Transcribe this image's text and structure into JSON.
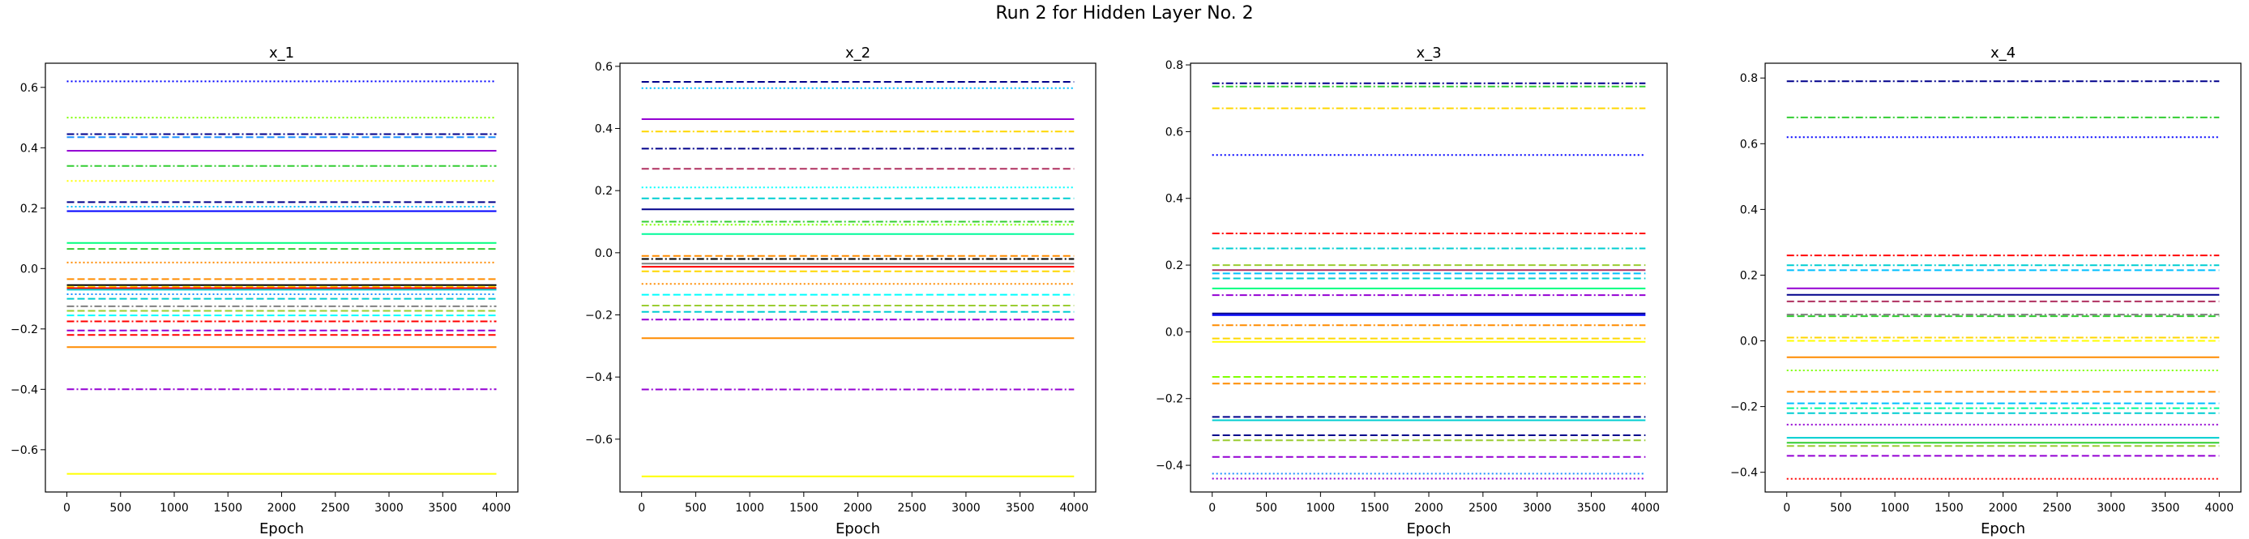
{
  "figure": {
    "title": "Run 2 for Hidden Layer No. 2"
  },
  "chart_data": [
    {
      "type": "line",
      "title": "x_1",
      "xlabel": "Epoch",
      "ylabel": "",
      "xlim": [
        -200,
        4200
      ],
      "ylim": [
        -0.74,
        0.68
      ],
      "xticks": [
        0,
        500,
        1000,
        1500,
        2000,
        2500,
        3000,
        3500,
        4000
      ],
      "yticks": [
        -0.6,
        -0.4,
        -0.2,
        0.0,
        0.2,
        0.4,
        0.6
      ],
      "ytick_labels": [
        "−0.6",
        "−0.4",
        "−0.2",
        "0.0",
        "0.2",
        "0.4",
        "0.6"
      ],
      "x_range": [
        0,
        4000
      ],
      "grid": false,
      "series": [
        {
          "value": 0.62,
          "color": "#0000ff",
          "style": "dotted"
        },
        {
          "value": 0.5,
          "color": "#7fff00",
          "style": "dotted"
        },
        {
          "value": 0.445,
          "color": "#00008b",
          "style": "dashdot"
        },
        {
          "value": 0.435,
          "color": "#1e90ff",
          "style": "dashed"
        },
        {
          "value": 0.39,
          "color": "#9400d3",
          "style": "solid"
        },
        {
          "value": 0.34,
          "color": "#32cd32",
          "style": "dashdot"
        },
        {
          "value": 0.29,
          "color": "#ffff00",
          "style": "dotted"
        },
        {
          "value": 0.22,
          "color": "#00008b",
          "style": "dashed"
        },
        {
          "value": 0.205,
          "color": "#00bfff",
          "style": "dotted"
        },
        {
          "value": 0.19,
          "color": "#0000ff",
          "style": "solid"
        },
        {
          "value": 0.085,
          "color": "#00ff7f",
          "style": "solid"
        },
        {
          "value": 0.065,
          "color": "#32cd32",
          "style": "dashed"
        },
        {
          "value": 0.02,
          "color": "#ff8c00",
          "style": "dotted"
        },
        {
          "value": -0.035,
          "color": "#ff8c00",
          "style": "dashed"
        },
        {
          "value": -0.055,
          "color": "#000000",
          "style": "solid"
        },
        {
          "value": -0.06,
          "color": "#ffd700",
          "style": "dashed"
        },
        {
          "value": -0.065,
          "color": "#ff0000",
          "style": "solid"
        },
        {
          "value": -0.07,
          "color": "#00ced1",
          "style": "solid"
        },
        {
          "value": -0.085,
          "color": "#1e90ff",
          "style": "dotted"
        },
        {
          "value": -0.1,
          "color": "#00ced1",
          "style": "dashed"
        },
        {
          "value": -0.125,
          "color": "#808080",
          "style": "dashdot"
        },
        {
          "value": -0.14,
          "color": "#9acd32",
          "style": "dashed"
        },
        {
          "value": -0.155,
          "color": "#00ffff",
          "style": "dashed"
        },
        {
          "value": -0.175,
          "color": "#ff0000",
          "style": "dashdot"
        },
        {
          "value": -0.205,
          "color": "#9400d3",
          "style": "dashed"
        },
        {
          "value": -0.22,
          "color": "#ff0000",
          "style": "dashed"
        },
        {
          "value": -0.26,
          "color": "#ff8c00",
          "style": "solid"
        },
        {
          "value": -0.4,
          "color": "#9400d3",
          "style": "dashdot"
        },
        {
          "value": -0.68,
          "color": "#ffff00",
          "style": "solid"
        }
      ]
    },
    {
      "type": "line",
      "title": "x_2",
      "xlabel": "Epoch",
      "ylabel": "",
      "xlim": [
        -200,
        4200
      ],
      "ylim": [
        -0.77,
        0.61
      ],
      "xticks": [
        0,
        500,
        1000,
        1500,
        2000,
        2500,
        3000,
        3500,
        4000
      ],
      "yticks": [
        -0.6,
        -0.4,
        -0.2,
        0.0,
        0.2,
        0.4,
        0.6
      ],
      "ytick_labels": [
        "−0.6",
        "−0.4",
        "−0.2",
        "0.0",
        "0.2",
        "0.4",
        "0.6"
      ],
      "x_range": [
        0,
        4000
      ],
      "grid": false,
      "series": [
        {
          "value": 0.55,
          "color": "#00008b",
          "style": "dashed"
        },
        {
          "value": 0.53,
          "color": "#00bfff",
          "style": "dotted"
        },
        {
          "value": 0.43,
          "color": "#9400d3",
          "style": "solid"
        },
        {
          "value": 0.39,
          "color": "#ffd700",
          "style": "dashdot"
        },
        {
          "value": 0.335,
          "color": "#00008b",
          "style": "dashdot"
        },
        {
          "value": 0.27,
          "color": "#b03060",
          "style": "dashed"
        },
        {
          "value": 0.21,
          "color": "#00ffff",
          "style": "dotted"
        },
        {
          "value": 0.175,
          "color": "#00ced1",
          "style": "dashed"
        },
        {
          "value": 0.14,
          "color": "#00008b",
          "style": "solid"
        },
        {
          "value": 0.1,
          "color": "#32cd32",
          "style": "dashdot"
        },
        {
          "value": 0.09,
          "color": "#7fff00",
          "style": "dotted"
        },
        {
          "value": 0.06,
          "color": "#00fa9a",
          "style": "solid"
        },
        {
          "value": -0.01,
          "color": "#ff8c00",
          "style": "dashed"
        },
        {
          "value": -0.02,
          "color": "#000000",
          "style": "dashdot"
        },
        {
          "value": -0.035,
          "color": "#808080",
          "style": "solid"
        },
        {
          "value": -0.045,
          "color": "#ff0000",
          "style": "solid"
        },
        {
          "value": -0.06,
          "color": "#ffd700",
          "style": "dashed"
        },
        {
          "value": -0.1,
          "color": "#ff8c00",
          "style": "dotted"
        },
        {
          "value": -0.135,
          "color": "#00ffff",
          "style": "dashed"
        },
        {
          "value": -0.17,
          "color": "#9acd32",
          "style": "dashed"
        },
        {
          "value": -0.19,
          "color": "#00ced1",
          "style": "dashed"
        },
        {
          "value": -0.215,
          "color": "#9400d3",
          "style": "dashdot"
        },
        {
          "value": -0.275,
          "color": "#ff8c00",
          "style": "solid"
        },
        {
          "value": -0.44,
          "color": "#9400d3",
          "style": "dashdot"
        },
        {
          "value": -0.72,
          "color": "#ffff00",
          "style": "solid"
        }
      ]
    },
    {
      "type": "line",
      "title": "x_3",
      "xlabel": "Epoch",
      "ylabel": "",
      "xlim": [
        -200,
        4200
      ],
      "ylim": [
        -0.48,
        0.805
      ],
      "xticks": [
        0,
        500,
        1000,
        1500,
        2000,
        2500,
        3000,
        3500,
        4000
      ],
      "yticks": [
        -0.4,
        -0.2,
        0.0,
        0.2,
        0.4,
        0.6,
        0.8
      ],
      "ytick_labels": [
        "−0.4",
        "−0.2",
        "0.0",
        "0.2",
        "0.4",
        "0.6",
        "0.8"
      ],
      "x_range": [
        0,
        4000
      ],
      "grid": false,
      "series": [
        {
          "value": 0.745,
          "color": "#00008b",
          "style": "dashdot"
        },
        {
          "value": 0.735,
          "color": "#32cd32",
          "style": "dashdot"
        },
        {
          "value": 0.67,
          "color": "#ffd700",
          "style": "dashdot"
        },
        {
          "value": 0.53,
          "color": "#0000ff",
          "style": "dotted"
        },
        {
          "value": 0.295,
          "color": "#ff0000",
          "style": "dashdot"
        },
        {
          "value": 0.25,
          "color": "#00ced1",
          "style": "dashdot"
        },
        {
          "value": 0.2,
          "color": "#9acd32",
          "style": "dashed"
        },
        {
          "value": 0.185,
          "color": "#b03060",
          "style": "solid"
        },
        {
          "value": 0.175,
          "color": "#00bfff",
          "style": "dashed"
        },
        {
          "value": 0.16,
          "color": "#00ced1",
          "style": "dashed"
        },
        {
          "value": 0.13,
          "color": "#00ff7f",
          "style": "solid"
        },
        {
          "value": 0.11,
          "color": "#9400d3",
          "style": "dashdot"
        },
        {
          "value": 0.055,
          "color": "#00008b",
          "style": "solid"
        },
        {
          "value": 0.05,
          "color": "#0000ff",
          "style": "solid"
        },
        {
          "value": 0.02,
          "color": "#ff8c00",
          "style": "dashdot"
        },
        {
          "value": -0.02,
          "color": "#ffd700",
          "style": "dashed"
        },
        {
          "value": -0.03,
          "color": "#ffff00",
          "style": "solid"
        },
        {
          "value": -0.135,
          "color": "#7fff00",
          "style": "dashed"
        },
        {
          "value": -0.155,
          "color": "#ff8c00",
          "style": "dashed"
        },
        {
          "value": -0.255,
          "color": "#00008b",
          "style": "dashed"
        },
        {
          "value": -0.265,
          "color": "#00ced1",
          "style": "solid"
        },
        {
          "value": -0.31,
          "color": "#00008b",
          "style": "dashed"
        },
        {
          "value": -0.325,
          "color": "#9acd32",
          "style": "dashed"
        },
        {
          "value": -0.375,
          "color": "#9400d3",
          "style": "dashed"
        },
        {
          "value": -0.425,
          "color": "#1e90ff",
          "style": "dotted"
        },
        {
          "value": -0.44,
          "color": "#9400d3",
          "style": "dotted"
        }
      ]
    },
    {
      "type": "line",
      "title": "x_4",
      "xlabel": "Epoch",
      "ylabel": "",
      "xlim": [
        -200,
        4200
      ],
      "ylim": [
        -0.46,
        0.845
      ],
      "xticks": [
        0,
        500,
        1000,
        1500,
        2000,
        2500,
        3000,
        3500,
        4000
      ],
      "yticks": [
        -0.4,
        -0.2,
        0.0,
        0.2,
        0.4,
        0.6,
        0.8
      ],
      "ytick_labels": [
        "−0.4",
        "−0.2",
        "0.0",
        "0.2",
        "0.4",
        "0.6",
        "0.8"
      ],
      "x_range": [
        0,
        4000
      ],
      "grid": false,
      "series": [
        {
          "value": 0.79,
          "color": "#00008b",
          "style": "dashdot"
        },
        {
          "value": 0.68,
          "color": "#32cd32",
          "style": "dashdot"
        },
        {
          "value": 0.62,
          "color": "#0000ff",
          "style": "dotted"
        },
        {
          "value": 0.26,
          "color": "#ff0000",
          "style": "dashdot"
        },
        {
          "value": 0.23,
          "color": "#00ced1",
          "style": "dashdot"
        },
        {
          "value": 0.215,
          "color": "#00bfff",
          "style": "dashed"
        },
        {
          "value": 0.16,
          "color": "#9400d3",
          "style": "solid"
        },
        {
          "value": 0.14,
          "color": "#00008b",
          "style": "solid"
        },
        {
          "value": 0.12,
          "color": "#b03060",
          "style": "dashed"
        },
        {
          "value": 0.08,
          "color": "#808080",
          "style": "dashdot"
        },
        {
          "value": 0.075,
          "color": "#32cd32",
          "style": "dashed"
        },
        {
          "value": 0.01,
          "color": "#ffd700",
          "style": "dashdot"
        },
        {
          "value": 0.0,
          "color": "#ffff00",
          "style": "dashed"
        },
        {
          "value": -0.05,
          "color": "#ff8c00",
          "style": "solid"
        },
        {
          "value": -0.09,
          "color": "#7fff00",
          "style": "dotted"
        },
        {
          "value": -0.155,
          "color": "#ff8c00",
          "style": "dashed"
        },
        {
          "value": -0.19,
          "color": "#00bfff",
          "style": "dashed"
        },
        {
          "value": -0.205,
          "color": "#00fa9a",
          "style": "dashdot"
        },
        {
          "value": -0.22,
          "color": "#00ced1",
          "style": "dashed"
        },
        {
          "value": -0.255,
          "color": "#9400d3",
          "style": "dotted"
        },
        {
          "value": -0.295,
          "color": "#00ced1",
          "style": "solid"
        },
        {
          "value": -0.31,
          "color": "#32cd32",
          "style": "solid"
        },
        {
          "value": -0.32,
          "color": "#9acd32",
          "style": "dashed"
        },
        {
          "value": -0.35,
          "color": "#9400d3",
          "style": "dashed"
        },
        {
          "value": -0.42,
          "color": "#ff0000",
          "style": "dotted"
        }
      ]
    }
  ]
}
